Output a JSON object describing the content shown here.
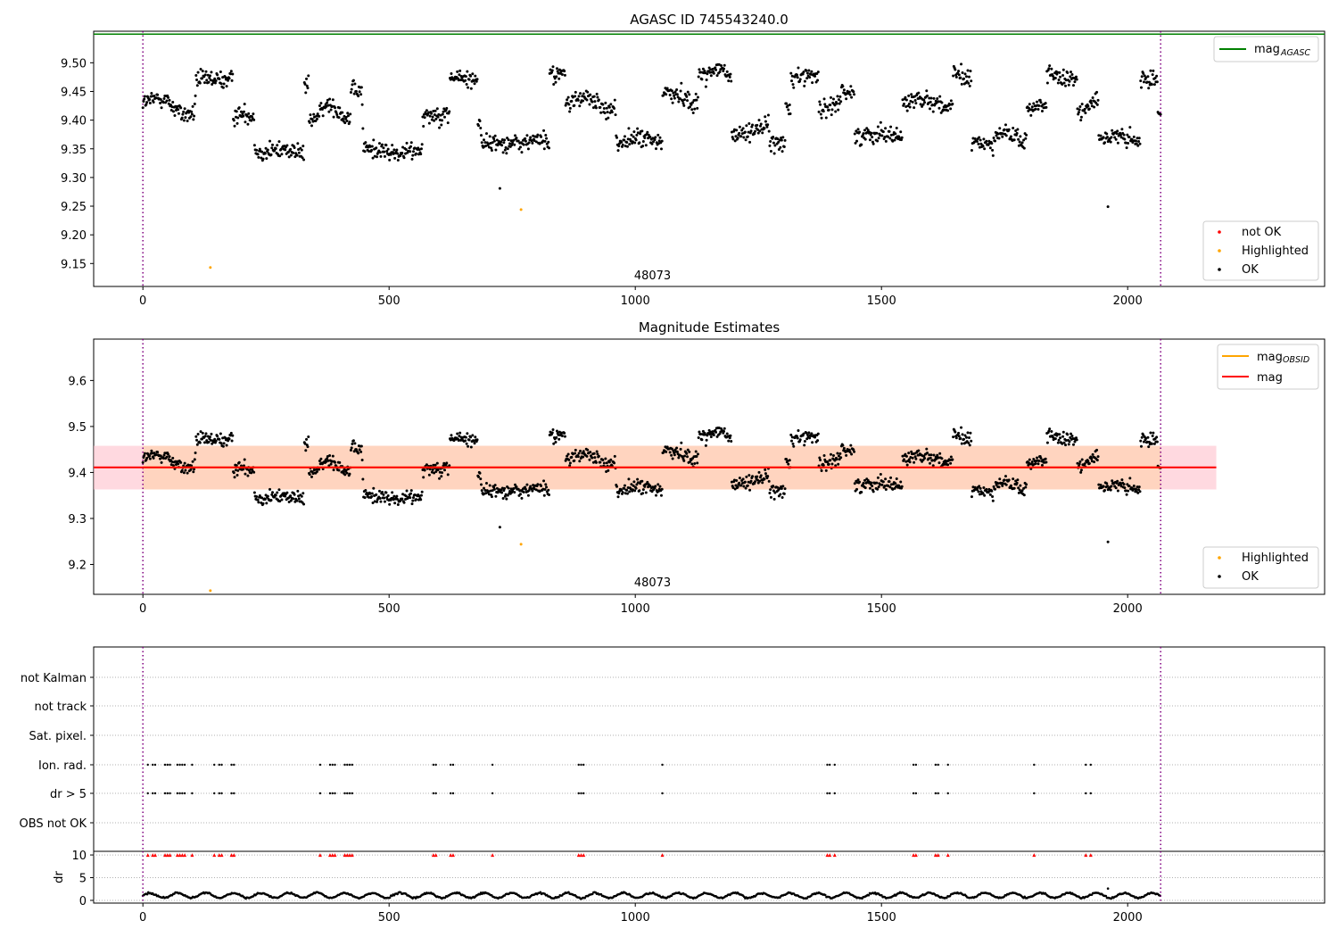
{
  "figure": {
    "panel1_title": "AGASC ID 745543240.0",
    "panel2_title": "Magnitude Estimates",
    "obsid_label": "48073",
    "colors": {
      "ok": "#000000",
      "highlighted": "#ffa500",
      "not_ok": "#ff0000",
      "agasc_line": "#008000",
      "mag_line": "#ff0000",
      "obsid_line": "#ffa500",
      "band": "#ffc0cb",
      "band_obs": "#ffd2b4",
      "obs_vline": "#800080"
    }
  },
  "chart_data": [
    {
      "type": "scatter",
      "title": "AGASC ID 745543240.0",
      "xlim": [
        -100,
        2400
      ],
      "ylim": [
        9.11,
        9.555
      ],
      "x_ticks": [
        0,
        500,
        1000,
        1500,
        2000
      ],
      "y_ticks": [
        9.15,
        9.2,
        9.25,
        9.3,
        9.35,
        9.4,
        9.45,
        9.5
      ],
      "vertical_lines": [
        0,
        2067
      ],
      "reference_lines": [
        {
          "name": "mag_AGASC",
          "y": 9.55,
          "color": "#008000"
        }
      ],
      "legends": [
        {
          "position": "top-right",
          "entries": [
            {
              "label_main": "mag",
              "label_sub": "AGASC",
              "kind": "line",
              "color": "#008000"
            }
          ]
        },
        {
          "position": "bottom-right",
          "entries": [
            {
              "label": "not OK",
              "kind": "dot",
              "color": "#ff0000"
            },
            {
              "label": "Highlighted",
              "kind": "dot",
              "color": "#ffa500"
            },
            {
              "label": "OK",
              "kind": "dot",
              "color": "#000000"
            }
          ]
        }
      ],
      "annotation": "48073",
      "highlighted_points": [
        {
          "x": 137,
          "y": 9.143
        },
        {
          "x": 768,
          "y": 9.244
        }
      ],
      "outlier_points": [
        {
          "x": 725,
          "y": 9.281
        },
        {
          "x": 1960,
          "y": 9.249
        }
      ],
      "ok_series_segments": [
        [
          0,
          9.43
        ],
        [
          40,
          9.44
        ],
        [
          80,
          9.41
        ],
        [
          105,
          9.41
        ],
        [
          125,
          9.47
        ],
        [
          175,
          9.47
        ],
        [
          190,
          9.41
        ],
        [
          225,
          9.41
        ],
        [
          250,
          9.345
        ],
        [
          300,
          9.35
        ],
        [
          325,
          9.34
        ],
        [
          330,
          9.46
        ],
        [
          345,
          9.4
        ],
        [
          380,
          9.43
        ],
        [
          420,
          9.4
        ],
        [
          445,
          9.45
        ],
        [
          470,
          9.35
        ],
        [
          520,
          9.34
        ],
        [
          560,
          9.35
        ],
        [
          575,
          9.41
        ],
        [
          620,
          9.41
        ],
        [
          625,
          9.475
        ],
        [
          675,
          9.47
        ],
        [
          685,
          9.4
        ],
        [
          715,
          9.36
        ],
        [
          780,
          9.36
        ],
        [
          800,
          9.37
        ],
        [
          820,
          9.36
        ],
        [
          830,
          9.48
        ],
        [
          855,
          9.48
        ],
        [
          860,
          9.43
        ],
        [
          900,
          9.44
        ],
        [
          940,
          9.42
        ],
        [
          955,
          9.42
        ],
        [
          965,
          9.36
        ],
        [
          1010,
          9.37
        ],
        [
          1050,
          9.36
        ],
        [
          1060,
          9.45
        ],
        [
          1100,
          9.44
        ],
        [
          1120,
          9.43
        ],
        [
          1135,
          9.48
        ],
        [
          1175,
          9.49
        ],
        [
          1190,
          9.475
        ],
        [
          1200,
          9.37
        ],
        [
          1240,
          9.385
        ],
        [
          1270,
          9.39
        ],
        [
          1300,
          9.36
        ],
        [
          1310,
          9.42
        ],
        [
          1320,
          9.475
        ],
        [
          1365,
          9.48
        ],
        [
          1380,
          9.42
        ],
        [
          1405,
          9.42
        ],
        [
          1420,
          9.45
        ],
        [
          1440,
          9.45
        ],
        [
          1450,
          9.37
        ],
        [
          1500,
          9.38
        ],
        [
          1540,
          9.37
        ],
        [
          1545,
          9.43
        ],
        [
          1585,
          9.44
        ],
        [
          1640,
          9.42
        ],
        [
          1650,
          9.48
        ],
        [
          1680,
          9.47
        ],
        [
          1685,
          9.36
        ],
        [
          1720,
          9.36
        ],
        [
          1750,
          9.38
        ],
        [
          1770,
          9.37
        ],
        [
          1790,
          9.36
        ],
        [
          1800,
          9.42
        ],
        [
          1830,
          9.43
        ],
        [
          1840,
          9.48
        ],
        [
          1860,
          9.47
        ],
        [
          1895,
          9.47
        ],
        [
          1900,
          9.41
        ],
        [
          1935,
          9.44
        ],
        [
          1945,
          9.37
        ],
        [
          1990,
          9.37
        ],
        [
          2020,
          9.36
        ],
        [
          2030,
          9.47
        ],
        [
          2055,
          9.47
        ],
        [
          2067,
          9.42
        ]
      ]
    },
    {
      "type": "scatter",
      "title": "Magnitude Estimates",
      "xlim": [
        -100,
        2400
      ],
      "ylim": [
        9.135,
        9.69
      ],
      "x_ticks": [
        0,
        500,
        1000,
        1500,
        2000
      ],
      "y_ticks": [
        9.2,
        9.3,
        9.4,
        9.5,
        9.6
      ],
      "vertical_lines": [
        0,
        2067
      ],
      "mag": 9.411,
      "band_all": {
        "x": [
          -100,
          2180
        ],
        "ylo": 9.363,
        "yhi": 9.458
      },
      "band_obsid": {
        "x": [
          0,
          2067
        ],
        "ylo": 9.363,
        "yhi": 9.458
      },
      "legends": [
        {
          "position": "top-right",
          "entries": [
            {
              "label_main": "mag",
              "label_sub": "OBSID",
              "kind": "line",
              "color": "#ffa500"
            },
            {
              "label": "mag",
              "kind": "line",
              "color": "#ff0000"
            }
          ]
        },
        {
          "position": "bottom-right",
          "entries": [
            {
              "label": "Highlighted",
              "kind": "dot",
              "color": "#ffa500"
            },
            {
              "label": "OK",
              "kind": "dot",
              "color": "#000000"
            }
          ]
        }
      ],
      "annotation": "48073"
    },
    {
      "type": "scatter",
      "title": "",
      "xlim": [
        -100,
        2400
      ],
      "x_ticks": [
        0,
        500,
        1000,
        1500,
        2000
      ],
      "flag_rows": [
        "not Kalman",
        "not track",
        "Sat. pixel.",
        "Ion. rad.",
        "dr > 5",
        "OBS not OK"
      ],
      "flag_events_x": [
        10,
        20,
        25,
        45,
        50,
        55,
        70,
        75,
        80,
        85,
        100,
        145,
        155,
        160,
        180,
        185,
        360,
        380,
        385,
        390,
        410,
        415,
        420,
        425,
        590,
        595,
        625,
        630,
        710,
        885,
        890,
        895,
        1055,
        1390,
        1395,
        1405,
        1565,
        1570,
        1610,
        1615,
        1635,
        1810,
        1915,
        1925
      ],
      "dr_ylabel": "dr",
      "dr_ylim": [
        0,
        10
      ],
      "dr_ticks": [
        0,
        5,
        10
      ],
      "dr_typical": 1.1
    }
  ]
}
